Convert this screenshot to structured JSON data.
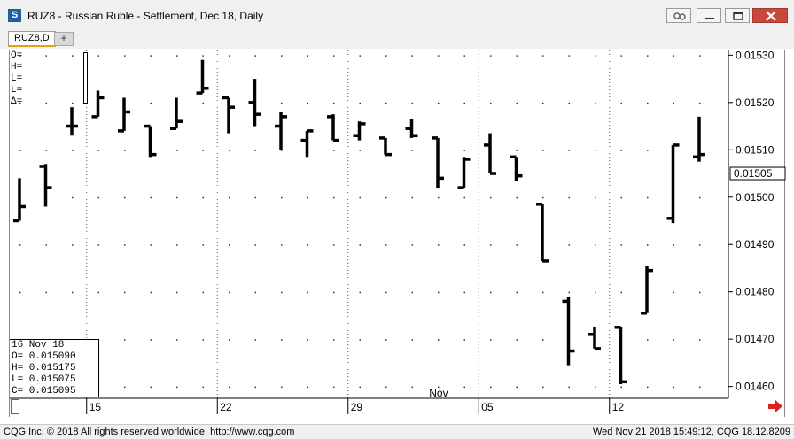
{
  "window": {
    "app_icon_letter": "S",
    "title": "RUZ8 - Russian Ruble - Settlement, Dec 18, Daily"
  },
  "tabs": [
    {
      "label": "RUZ8,D"
    }
  ],
  "tab_add_label": "+",
  "ohlc_labels": [
    "O=",
    "H=",
    "L=",
    "L=",
    "Δ="
  ],
  "info_box": {
    "date": "16 Nov 18",
    "lines": [
      "O= 0.015090",
      "H= 0.015175",
      "L= 0.015075",
      "C= 0.015095"
    ]
  },
  "footer": {
    "left": "CQG Inc. © 2018 All rights reserved worldwide. http://www.cqg.com",
    "right": "Wed Nov 21 2018 15:49:12, CQG 18.12.8209"
  },
  "colors": {
    "bar": "#000000",
    "current_price_bg": "#ffffff",
    "close_button": "#c9473d",
    "scroll_arrow": "#e02020"
  },
  "icons": [
    "link-icon",
    "minimize-icon",
    "maximize-icon",
    "close-icon",
    "scroll-right-arrow-icon"
  ],
  "chart_data": {
    "type": "ohlc",
    "title": "RUZ8 - Russian Ruble - Settlement, Dec 18, Daily",
    "xlabel": "",
    "ylabel": "",
    "ylim": [
      0.014575,
      0.01531
    ],
    "y_ticks": [
      0.0146,
      0.0147,
      0.0148,
      0.0149,
      0.015,
      0.0151,
      0.0152,
      0.0153
    ],
    "y_tick_labels": [
      "0.01460",
      "0.01470",
      "0.01480",
      "0.01490",
      "0.01500",
      "0.01510",
      "0.01520",
      "0.01530"
    ],
    "current_price": 0.01505,
    "current_price_label": "0.01505",
    "x_labels": [
      {
        "label": "15",
        "at": 3
      },
      {
        "label": "22",
        "at": 8
      },
      {
        "label": "29",
        "at": 13
      },
      {
        "label": "Nov",
        "at": 16.0,
        "inside": true
      },
      {
        "label": "05",
        "at": 18
      },
      {
        "label": "12",
        "at": 23
      }
    ],
    "x_gridlines_at": [
      3,
      8,
      13,
      18,
      23
    ],
    "grid": "dotted",
    "bars": [
      {
        "open": 0.01495,
        "high": 0.01504,
        "low": 0.01495,
        "close": 0.01498
      },
      {
        "open": 0.015065,
        "high": 0.01507,
        "low": 0.01498,
        "close": 0.01502
      },
      {
        "open": 0.01515,
        "high": 0.01519,
        "low": 0.01513,
        "close": 0.01515
      },
      {
        "open": 0.01517,
        "high": 0.015225,
        "low": 0.01517,
        "close": 0.01521
      },
      {
        "open": 0.01514,
        "high": 0.01521,
        "low": 0.01514,
        "close": 0.01518
      },
      {
        "open": 0.01515,
        "high": 0.01515,
        "low": 0.015085,
        "close": 0.01509
      },
      {
        "open": 0.015145,
        "high": 0.01521,
        "low": 0.015145,
        "close": 0.01516
      },
      {
        "open": 0.01522,
        "high": 0.01529,
        "low": 0.01522,
        "close": 0.01523
      },
      {
        "open": 0.01521,
        "high": 0.01521,
        "low": 0.015135,
        "close": 0.01519
      },
      {
        "open": 0.0152,
        "high": 0.01525,
        "low": 0.01515,
        "close": 0.015175
      },
      {
        "open": 0.01515,
        "high": 0.01518,
        "low": 0.0151,
        "close": 0.01517
      },
      {
        "open": 0.01512,
        "high": 0.01514,
        "low": 0.015085,
        "close": 0.01514
      },
      {
        "open": 0.01517,
        "high": 0.015175,
        "low": 0.01512,
        "close": 0.01512
      },
      {
        "open": 0.01513,
        "high": 0.01516,
        "low": 0.01512,
        "close": 0.015155
      },
      {
        "open": 0.015125,
        "high": 0.015125,
        "low": 0.01509,
        "close": 0.01509
      },
      {
        "open": 0.015145,
        "high": 0.015165,
        "low": 0.015125,
        "close": 0.01513
      },
      {
        "open": 0.015125,
        "high": 0.015125,
        "low": 0.01502,
        "close": 0.01504
      },
      {
        "open": 0.01502,
        "high": 0.015085,
        "low": 0.01502,
        "close": 0.01508
      },
      {
        "open": 0.01511,
        "high": 0.015135,
        "low": 0.01505,
        "close": 0.01505
      },
      {
        "open": 0.015085,
        "high": 0.015085,
        "low": 0.015035,
        "close": 0.015045
      },
      {
        "open": 0.014985,
        "high": 0.014985,
        "low": 0.014865,
        "close": 0.014865
      },
      {
        "open": 0.01478,
        "high": 0.01479,
        "low": 0.014645,
        "close": 0.014675
      },
      {
        "open": 0.01471,
        "high": 0.014725,
        "low": 0.01468,
        "close": 0.01468
      },
      {
        "open": 0.014725,
        "high": 0.014725,
        "low": 0.014605,
        "close": 0.01461
      },
      {
        "open": 0.014755,
        "high": 0.014855,
        "low": 0.014755,
        "close": 0.014845
      },
      {
        "open": 0.014955,
        "high": 0.01511,
        "low": 0.014945,
        "close": 0.01511
      },
      {
        "open": 0.015085,
        "high": 0.01517,
        "low": 0.015075,
        "close": 0.01509
      }
    ]
  }
}
